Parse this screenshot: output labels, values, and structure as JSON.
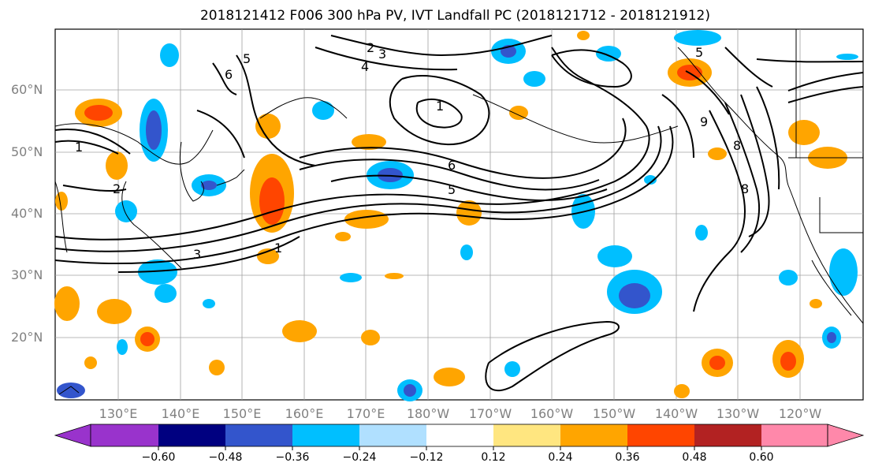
{
  "title": "2018121412 F006 300 hPa PV, IVT Landfall PC (2018121712 - 2018121912)",
  "lat_labels": [
    "60°N",
    "50°N",
    "40°N",
    "30°N",
    "20°N"
  ],
  "lon_labels": [
    "130°E",
    "140°E",
    "150°E",
    "160°E",
    "170°E",
    "180°W",
    "170°W",
    "160°W",
    "150°W",
    "140°W",
    "130°W",
    "120°W"
  ],
  "colorbar": {
    "ticks": [
      "−0.60",
      "−0.48",
      "−0.36",
      "−0.24",
      "−0.12",
      "0.12",
      "0.24",
      "0.36",
      "0.48",
      "0.60"
    ],
    "colors": [
      "#9933cc",
      "#000080",
      "#3355cc",
      "#00bfff",
      "#b0e0ff",
      "#ffffff",
      "#ffe680",
      "#ffa500",
      "#ff4500",
      "#b22222",
      "#ff88aa"
    ]
  },
  "contour_labels": [
    "1",
    "2",
    "3",
    "4",
    "5",
    "6",
    "8",
    "1",
    "2",
    "3",
    "5",
    "6",
    "1",
    "8",
    "9",
    "5"
  ],
  "colors": {
    "land": "#000000",
    "grid": "#a0a0a0",
    "axis_label": "#808080"
  }
}
